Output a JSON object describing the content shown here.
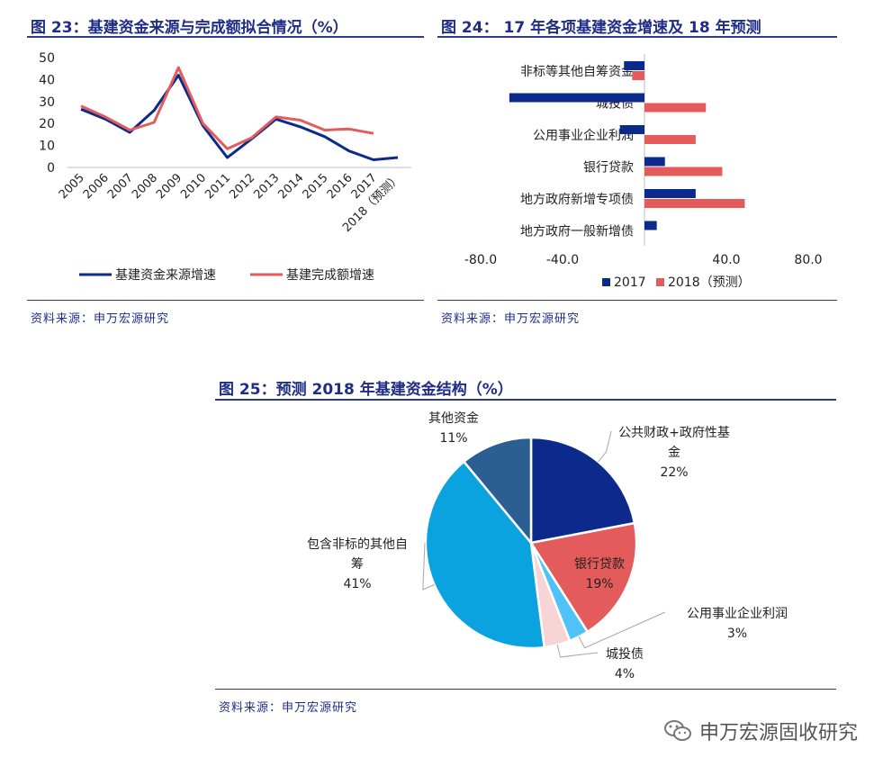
{
  "fig23": {
    "title": "图 23：基建资金来源与完成额拟合情况（%）",
    "source": "资料来源：申万宏源研究",
    "chart_data": {
      "type": "line",
      "categories": [
        "2005",
        "2006",
        "2007",
        "2008",
        "2009",
        "2010",
        "2011",
        "2012",
        "2013",
        "2014",
        "2015",
        "2016",
        "2017",
        "2018（预测）"
      ],
      "yticks": [
        0,
        10,
        20,
        30,
        40,
        50
      ],
      "ylim": [
        0,
        50
      ],
      "series": [
        {
          "name": "基建资金来源增速",
          "color": "#0b2a8c",
          "values": [
            26.5,
            22,
            16,
            26,
            42,
            19,
            4.5,
            13,
            22,
            18.5,
            14,
            7.5,
            3.5,
            4.5
          ]
        },
        {
          "name": "基建完成额增速",
          "color": "#e35b5b",
          "values": [
            28,
            23,
            17,
            20.5,
            45.5,
            20,
            8.5,
            13.5,
            23,
            21.5,
            17,
            17.5,
            15.5,
            null
          ]
        }
      ],
      "legend": "bottom"
    }
  },
  "fig24": {
    "title": "图 24： 17 年各项基建资金增速及 18 年预测",
    "source": "资料来源：申万宏源研究",
    "chart_data": {
      "type": "bar",
      "orientation": "horizontal",
      "categories": [
        "非标等其他自筹资金",
        "城投债",
        "公用事业企业利润",
        "银行贷款",
        "地方政府新增专项债",
        "地方政府一般新增债"
      ],
      "xticks": [
        -80.0,
        -40.0,
        0,
        40.0,
        80.0
      ],
      "xtick_labels": [
        "-80.0",
        "-40.0",
        "",
        "40.0",
        "80.0"
      ],
      "xlim": [
        -80,
        80
      ],
      "series": [
        {
          "name": "2017",
          "color": "#0b2a8c",
          "values": [
            -10,
            -66,
            -12,
            10,
            25,
            6
          ]
        },
        {
          "name": "2018（预测）",
          "color": "#e35b5b",
          "values": [
            -6,
            30,
            25,
            38,
            49,
            0
          ]
        }
      ],
      "legend": "bottom"
    }
  },
  "fig25": {
    "title": "图 25：预测 2018 年基建资金结构（%）",
    "source": "资料来源：申万宏源研究",
    "chart_data": {
      "type": "pie",
      "slices": [
        {
          "label_lines": [
            "公共财政+政府性基",
            "金"
          ],
          "pct": "22%",
          "value": 22,
          "color": "#0b2a8c"
        },
        {
          "label_lines": [
            "银行贷款"
          ],
          "pct": "19%",
          "value": 19,
          "color": "#e35b5b"
        },
        {
          "label_lines": [
            "公用事业企业利润"
          ],
          "pct": "3%",
          "value": 3,
          "color": "#4fc3f7"
        },
        {
          "label_lines": [
            "城投债"
          ],
          "pct": "4%",
          "value": 4,
          "color": "#f8d4d6"
        },
        {
          "label_lines": [
            "包含非标的其他自",
            "筹"
          ],
          "pct": "41%",
          "value": 41,
          "color": "#0aa3e0"
        },
        {
          "label_lines": [
            "其他资金"
          ],
          "pct": "11%",
          "value": 11,
          "color": "#2b5f91"
        }
      ]
    }
  },
  "watermark": {
    "text": "申万宏源固收研究",
    "icon": "wechat-icon"
  }
}
